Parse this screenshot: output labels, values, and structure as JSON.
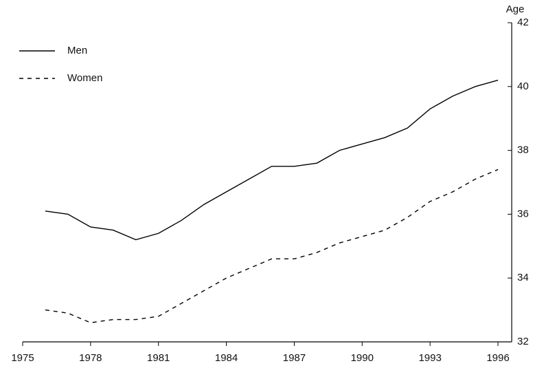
{
  "chart_data": {
    "type": "line",
    "y_label": "Age",
    "x": [
      1976,
      1977,
      1978,
      1979,
      1980,
      1981,
      1982,
      1983,
      1984,
      1985,
      1986,
      1987,
      1988,
      1989,
      1990,
      1991,
      1992,
      1993,
      1994,
      1995,
      1996
    ],
    "series": [
      {
        "name": "Men",
        "color": "#000000",
        "dash": "solid",
        "values": [
          36.1,
          36.0,
          35.6,
          35.5,
          35.2,
          35.4,
          35.8,
          36.3,
          36.7,
          37.1,
          37.5,
          37.5,
          37.6,
          38.0,
          38.2,
          38.4,
          38.7,
          39.3,
          39.7,
          40.0,
          40.2
        ]
      },
      {
        "name": "Women",
        "color": "#000000",
        "dash": "dashed",
        "values": [
          33.0,
          32.9,
          32.6,
          32.7,
          32.7,
          32.8,
          33.2,
          33.6,
          34.0,
          34.3,
          34.6,
          34.6,
          34.8,
          35.1,
          35.3,
          35.5,
          35.9,
          36.4,
          36.7,
          37.1,
          37.4
        ]
      }
    ],
    "xlim": [
      1975,
      1996
    ],
    "xticks": [
      1975,
      1978,
      1981,
      1984,
      1987,
      1990,
      1993,
      1996
    ],
    "ylim": [
      32,
      42
    ],
    "yticks": [
      32,
      34,
      36,
      38,
      40,
      42
    ],
    "y_axis_side": "right",
    "legend": "upper-left",
    "grid": false
  }
}
